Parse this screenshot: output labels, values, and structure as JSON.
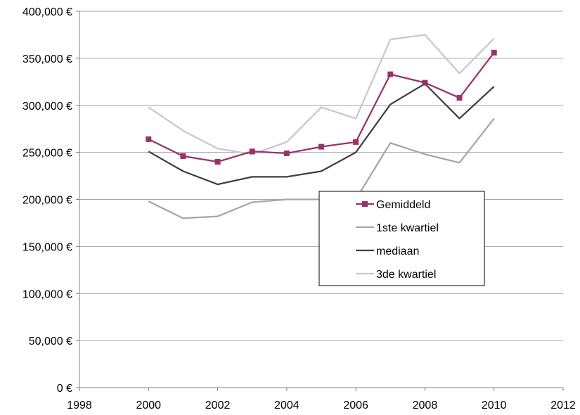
{
  "chart_data": {
    "type": "line",
    "title": "",
    "xlabel": "",
    "ylabel": "",
    "xlim": [
      1998,
      2012
    ],
    "ylim": [
      0,
      400000
    ],
    "x_ticks": [
      1998,
      2000,
      2002,
      2004,
      2006,
      2008,
      2010,
      2012
    ],
    "x_tick_labels": [
      "1998",
      "2000",
      "2002",
      "2004",
      "2006",
      "2008",
      "2010",
      "2012"
    ],
    "y_ticks": [
      0,
      50000,
      100000,
      150000,
      200000,
      250000,
      300000,
      350000,
      400000
    ],
    "y_tick_labels": [
      "0 €",
      "50,000 €",
      "100,000 €",
      "150,000 €",
      "200,000 €",
      "250,000 €",
      "300,000 €",
      "350,000 €",
      "400,000 €"
    ],
    "grid": "horizontal",
    "legend_position": "center-right",
    "x": [
      2000,
      2001,
      2002,
      2003,
      2004,
      2005,
      2006,
      2007,
      2008,
      2009,
      2010
    ],
    "series": [
      {
        "name": "Gemiddeld",
        "color": "#993366",
        "marker": "square",
        "values": [
          264000,
          246000,
          240000,
          251000,
          249000,
          256000,
          261000,
          333000,
          324000,
          308000,
          356000
        ]
      },
      {
        "name": "1ste kwartiel",
        "color": "#a6a6a6",
        "marker": "none",
        "values": [
          198000,
          180000,
          182000,
          197000,
          200000,
          200000,
          200000,
          260000,
          248000,
          239000,
          286000
        ]
      },
      {
        "name": "mediaan",
        "color": "#404040",
        "marker": "none",
        "values": [
          251000,
          230000,
          216000,
          224000,
          224000,
          230000,
          250000,
          301000,
          323000,
          286000,
          320000
        ]
      },
      {
        "name": "3de kwartiel",
        "color": "#c8c8c8",
        "marker": "none",
        "values": [
          298000,
          273000,
          254000,
          248000,
          261000,
          298000,
          286000,
          370000,
          375000,
          334000,
          371000
        ]
      }
    ]
  }
}
